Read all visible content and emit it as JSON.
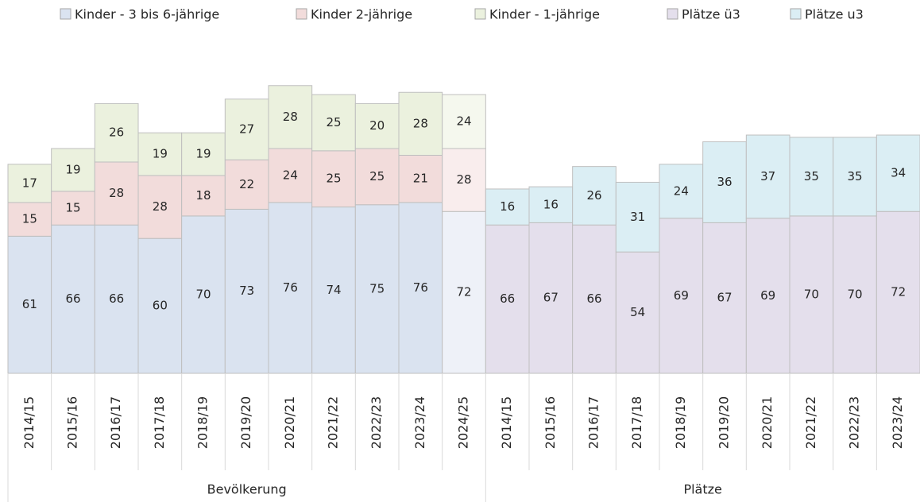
{
  "chart_data": {
    "type": "stacked_bar",
    "groups": [
      {
        "label": "Bevölkerung",
        "categories": [
          "2014/15",
          "2015/16",
          "2016/17",
          "2017/18",
          "2018/19",
          "2019/20",
          "2020/21",
          "2021/22",
          "2022/23",
          "2023/24",
          "2024/25"
        ]
      },
      {
        "label": "Plätze",
        "categories": [
          "2014/15",
          "2015/16",
          "2016/17",
          "2017/18",
          "2018/19",
          "2019/20",
          "2020/21",
          "2021/22",
          "2022/23",
          "2023/24"
        ]
      }
    ],
    "series": [
      {
        "name": "Kinder - 3 bis 6-jährige",
        "color": "#dae3f0",
        "colors": [
          "#dae3f0",
          "#dae3f0",
          "#dae3f0",
          "#dae3f0",
          "#dae3f0",
          "#dae3f0",
          "#dae3f0",
          "#dae3f0",
          "#dae3f0",
          "#dae3f0",
          "#eef1f8",
          null,
          null,
          null,
          null,
          null,
          null,
          null,
          null,
          null,
          null
        ],
        "values": [
          61,
          66,
          66,
          60,
          70,
          73,
          76,
          74,
          75,
          76,
          72,
          null,
          null,
          null,
          null,
          null,
          null,
          null,
          null,
          null,
          null
        ]
      },
      {
        "name": "Kinder 2-jährige",
        "color": "#f2dcdb",
        "colors": [
          "#f2dcdb",
          "#f2dcdb",
          "#f2dcdb",
          "#f2dcdb",
          "#f2dcdb",
          "#f2dcdb",
          "#f2dcdb",
          "#f2dcdb",
          "#f2dcdb",
          "#f2dcdb",
          "#f9eded",
          null,
          null,
          null,
          null,
          null,
          null,
          null,
          null,
          null,
          null
        ],
        "values": [
          15,
          15,
          28,
          28,
          18,
          22,
          24,
          25,
          25,
          21,
          28,
          null,
          null,
          null,
          null,
          null,
          null,
          null,
          null,
          null,
          null
        ]
      },
      {
        "name": "Kinder - 1-jährige",
        "color": "#ebf1de",
        "colors": [
          "#ebf1de",
          "#ebf1de",
          "#ebf1de",
          "#ebf1de",
          "#ebf1de",
          "#ebf1de",
          "#ebf1de",
          "#ebf1de",
          "#ebf1de",
          "#ebf1de",
          "#f5f8ee",
          null,
          null,
          null,
          null,
          null,
          null,
          null,
          null,
          null,
          null
        ],
        "values": [
          17,
          19,
          26,
          19,
          19,
          27,
          28,
          25,
          20,
          28,
          24,
          null,
          null,
          null,
          null,
          null,
          null,
          null,
          null,
          null,
          null
        ]
      },
      {
        "name": "Plätze ü3",
        "color": "#e4dfec",
        "values": [
          null,
          null,
          null,
          null,
          null,
          null,
          null,
          null,
          null,
          null,
          null,
          66,
          67,
          66,
          54,
          69,
          67,
          69,
          70,
          70,
          72
        ]
      },
      {
        "name": "Plätze u3",
        "color": "#dbeef4",
        "values": [
          null,
          null,
          null,
          null,
          null,
          null,
          null,
          null,
          null,
          null,
          null,
          16,
          16,
          26,
          31,
          24,
          36,
          37,
          35,
          35,
          34
        ]
      }
    ]
  }
}
